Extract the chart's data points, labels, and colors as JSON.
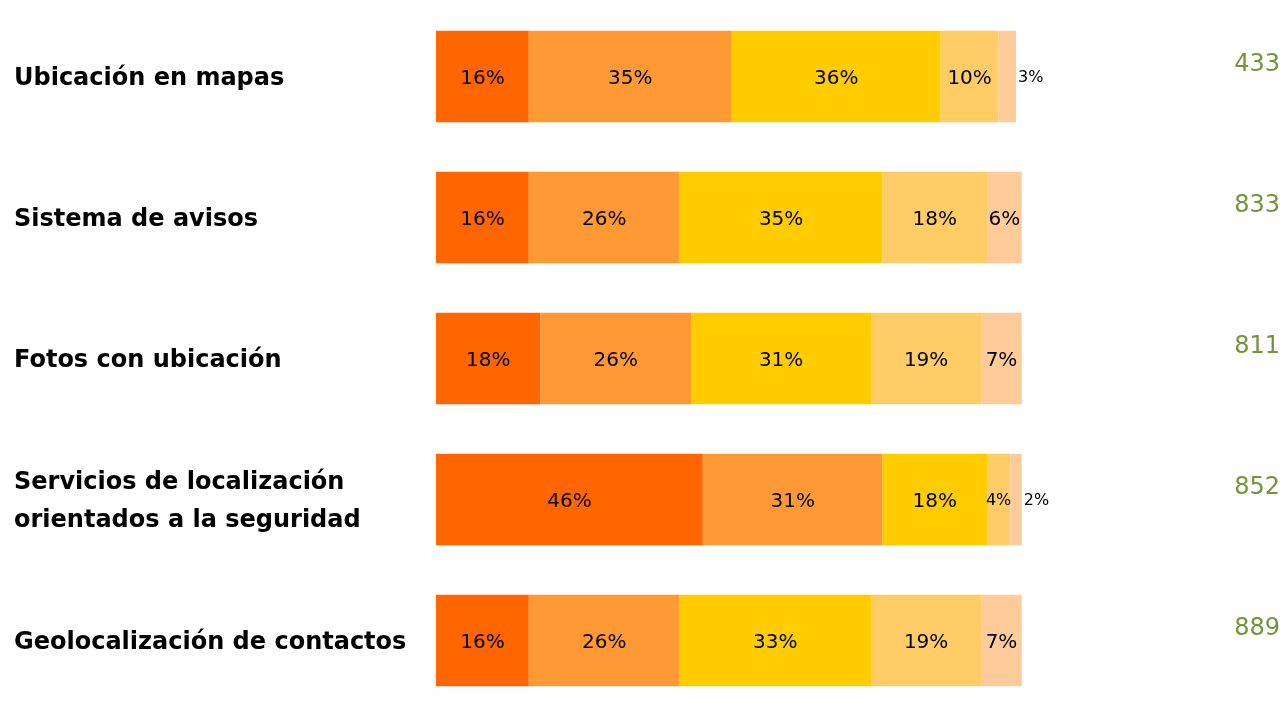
{
  "chart_data": {
    "type": "bar",
    "orientation": "horizontal",
    "stacked": true,
    "categories": [
      "Ubicación en mapas",
      "Sistema de avisos",
      "Fotos con ubicación",
      "Servicios de localización orientados a la seguridad",
      "Geolocalización de contactos"
    ],
    "series": [
      {
        "color": "#ff6600",
        "values": [
          16,
          16,
          18,
          46,
          16
        ],
        "value_labels": [
          "16%",
          "16%",
          "18%",
          "46%",
          "16%"
        ]
      },
      {
        "color": "#ff9933",
        "values": [
          35,
          26,
          26,
          31,
          26
        ],
        "value_labels": [
          "35%",
          "26%",
          "26%",
          "31%",
          "26%"
        ]
      },
      {
        "color": "#ffcc00",
        "values": [
          36,
          35,
          31,
          18,
          33
        ],
        "value_labels": [
          "36%",
          "35%",
          "31%",
          "18%",
          "33%"
        ]
      },
      {
        "color": "#ffcc66",
        "values": [
          10,
          18,
          19,
          4,
          19
        ],
        "value_labels": [
          "10%",
          "18%",
          "19%",
          "4%",
          "19%"
        ]
      },
      {
        "color": "#ffcc99",
        "values": [
          3,
          6,
          7,
          2,
          7
        ],
        "value_labels": [
          "3%",
          "6%",
          "7%",
          "2%",
          "7%"
        ]
      }
    ],
    "annotations": [
      "433",
      "833",
      "811",
      "852",
      "889"
    ]
  }
}
